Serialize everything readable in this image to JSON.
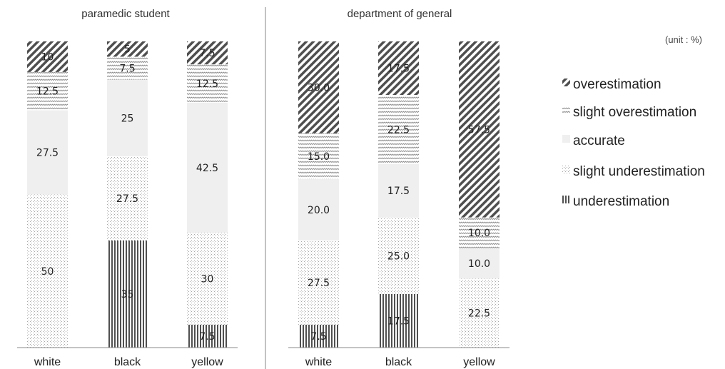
{
  "unit_note": "(unit : %)",
  "colors": {
    "overestimation": "#555555",
    "slight_overestimation": "#9a9a9a",
    "accurate": "#eeeeee",
    "slight_underestimation": "#b8b8b8",
    "underestimation": "#555555",
    "axis": "#888888"
  },
  "legend": [
    {
      "key": "overestimation",
      "label": "overestimation",
      "pattern": "pat-over"
    },
    {
      "key": "slight_overestimation",
      "label": "slight overestimation",
      "pattern": "pat-slover"
    },
    {
      "key": "accurate",
      "label": "accurate",
      "pattern": "pat-acc"
    },
    {
      "key": "slight_underestimation",
      "label": "slight underestimation",
      "pattern": "pat-slunder"
    },
    {
      "key": "underestimation",
      "label": "underestimation",
      "pattern": "pat-under"
    }
  ],
  "chart_data": [
    {
      "type": "bar",
      "stacked": true,
      "title": "paramedic student",
      "categories": [
        "white",
        "black",
        "yellow"
      ],
      "ylim": [
        0,
        100
      ],
      "series": [
        {
          "name": "underestimation",
          "values": [
            0,
            35,
            7.5
          ],
          "labels": [
            "0",
            "35",
            "7.5"
          ]
        },
        {
          "name": "slight underestimation",
          "values": [
            50,
            27.5,
            30
          ],
          "labels": [
            "50",
            "27.5",
            "30"
          ]
        },
        {
          "name": "accurate",
          "values": [
            27.5,
            25,
            42.5
          ],
          "labels": [
            "27.5",
            "25",
            "42.5"
          ]
        },
        {
          "name": "slight overestimation",
          "values": [
            12.5,
            7.5,
            12.5
          ],
          "labels": [
            "12.5",
            "7.5",
            "12.5"
          ]
        },
        {
          "name": "overestimation",
          "values": [
            10,
            5,
            7.5
          ],
          "labels": [
            "10",
            "5",
            "7.5"
          ]
        }
      ]
    },
    {
      "type": "bar",
      "stacked": true,
      "title": "department of general",
      "categories": [
        "white",
        "black",
        "yellow"
      ],
      "ylim": [
        0,
        100
      ],
      "series": [
        {
          "name": "underestimation",
          "values": [
            7.5,
            17.5,
            0
          ],
          "labels": [
            "7.5",
            "17.5",
            "0.0"
          ]
        },
        {
          "name": "slight underestimation",
          "values": [
            27.5,
            25,
            22.5
          ],
          "labels": [
            "27.5",
            "25.0",
            "22.5"
          ]
        },
        {
          "name": "accurate",
          "values": [
            20,
            17.5,
            10
          ],
          "labels": [
            "20.0",
            "17.5",
            "10.0"
          ]
        },
        {
          "name": "slight overestimation",
          "values": [
            15,
            22.5,
            10
          ],
          "labels": [
            "15.0",
            "22.5",
            "10.0"
          ]
        },
        {
          "name": "overestimation",
          "values": [
            30,
            17.5,
            57.5
          ],
          "labels": [
            "30.0",
            "17.5",
            "57.5"
          ]
        }
      ]
    }
  ]
}
